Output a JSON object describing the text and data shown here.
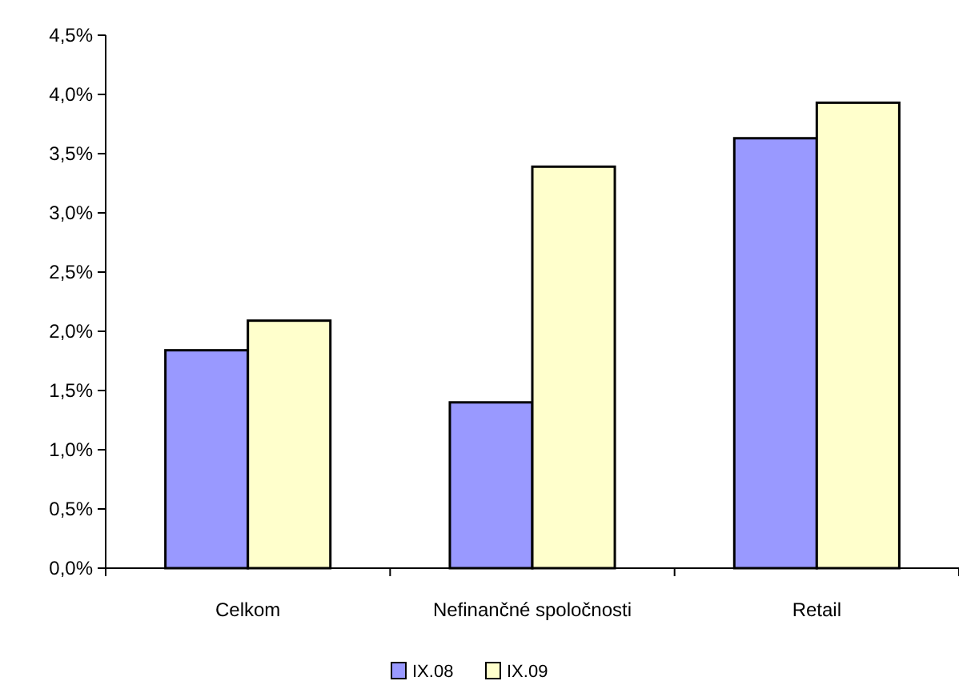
{
  "chart_data": {
    "type": "bar",
    "categories": [
      "Celkom",
      "Nefinančné spoločnosti",
      "Retail"
    ],
    "series": [
      {
        "name": "IX.08",
        "color": "#9999ff",
        "values": [
          1.84,
          1.4,
          3.63
        ]
      },
      {
        "name": "IX.09",
        "color": "#ffffcc",
        "values": [
          2.09,
          3.39,
          3.93
        ]
      }
    ],
    "ylim": [
      0,
      4.5
    ],
    "yticks": [
      {
        "value": 0,
        "label": "0,0%"
      },
      {
        "value": 0.5,
        "label": "0,5%"
      },
      {
        "value": 1,
        "label": "1,0%"
      },
      {
        "value": 1.5,
        "label": "1,5%"
      },
      {
        "value": 2,
        "label": "2,0%"
      },
      {
        "value": 2.5,
        "label": "2,5%"
      },
      {
        "value": 3,
        "label": "3,0%"
      },
      {
        "value": 3.5,
        "label": "3,5%"
      },
      {
        "value": 4,
        "label": "4,0%"
      },
      {
        "value": 4.5,
        "label": "4,5%"
      }
    ],
    "grid": false,
    "legend": "bottom"
  }
}
